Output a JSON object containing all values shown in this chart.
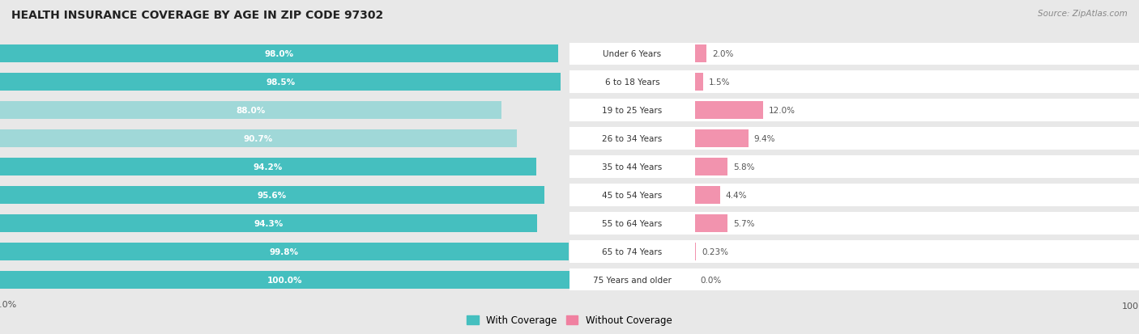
{
  "title": "HEALTH INSURANCE COVERAGE BY AGE IN ZIP CODE 97302",
  "source": "Source: ZipAtlas.com",
  "categories": [
    "Under 6 Years",
    "6 to 18 Years",
    "19 to 25 Years",
    "26 to 34 Years",
    "35 to 44 Years",
    "45 to 54 Years",
    "55 to 64 Years",
    "65 to 74 Years",
    "75 Years and older"
  ],
  "with_coverage": [
    98.0,
    98.5,
    88.0,
    90.7,
    94.2,
    95.6,
    94.3,
    99.8,
    100.0
  ],
  "without_coverage": [
    2.0,
    1.5,
    12.0,
    9.4,
    5.8,
    4.4,
    5.7,
    0.23,
    0.0
  ],
  "with_coverage_labels": [
    "98.0%",
    "98.5%",
    "88.0%",
    "90.7%",
    "94.2%",
    "95.6%",
    "94.3%",
    "99.8%",
    "100.0%"
  ],
  "without_coverage_labels": [
    "2.0%",
    "1.5%",
    "12.0%",
    "9.4%",
    "5.8%",
    "4.4%",
    "5.7%",
    "0.23%",
    "0.0%"
  ],
  "color_with": "#45BFBF",
  "color_without": "#F080A0",
  "color_with_light": "#A0D8D8",
  "color_row_bg": "#e8e8e8",
  "background_color": "#e8e8e8",
  "legend_with": "With Coverage",
  "legend_without": "Without Coverage",
  "bar_height": 0.62,
  "figsize": [
    14.06,
    4.14
  ],
  "dpi": 100
}
